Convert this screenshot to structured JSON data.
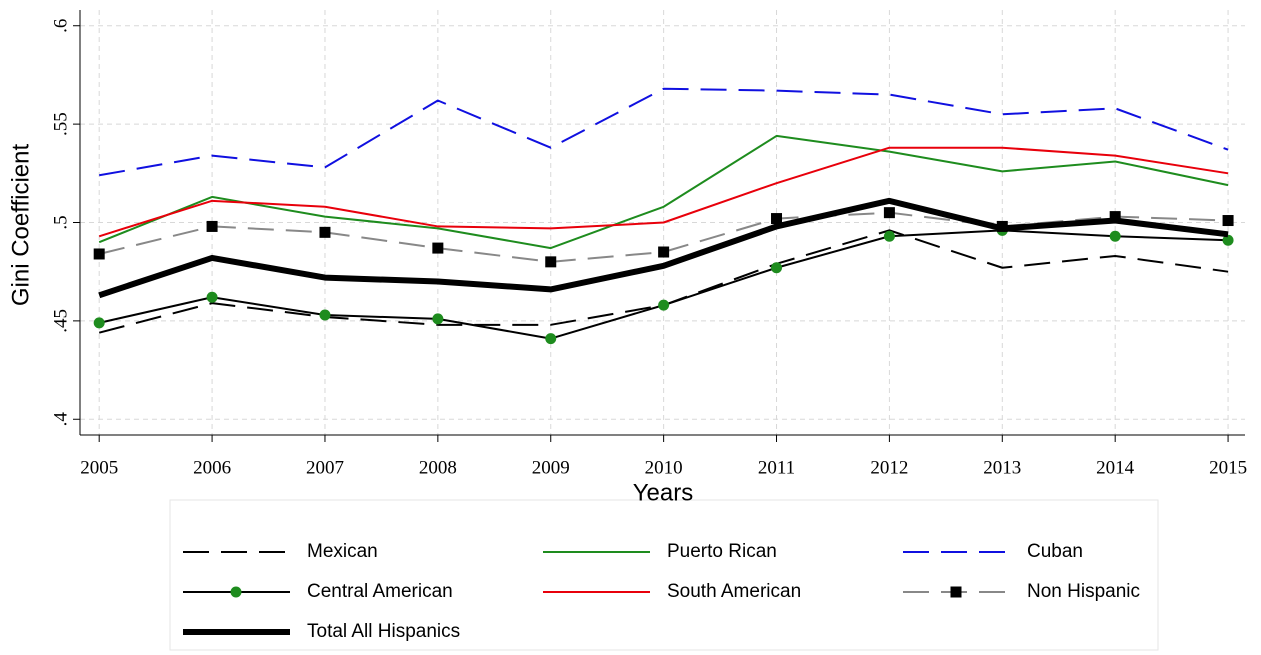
{
  "chart_data": {
    "type": "line",
    "x": [
      2005,
      2006,
      2007,
      2008,
      2009,
      2010,
      2011,
      2012,
      2013,
      2014,
      2015
    ],
    "xlim": [
      2004.83,
      2015.15
    ],
    "xticks": [
      2005,
      2006,
      2007,
      2008,
      2009,
      2010,
      2011,
      2012,
      2013,
      2014,
      2015
    ],
    "ylim": [
      0.392,
      0.608
    ],
    "yticks": [
      {
        "value": 0.4,
        "label": ".4"
      },
      {
        "value": 0.45,
        "label": ".45"
      },
      {
        "value": 0.5,
        "label": ".5"
      },
      {
        "value": 0.55,
        "label": ".55"
      },
      {
        "value": 0.6,
        "label": ".6"
      }
    ],
    "xlabel": "Years",
    "ylabel": "Gini Coefficient",
    "grid": true,
    "legend": "bottom",
    "series": [
      {
        "name": "Mexican",
        "color": "#000000",
        "line_style": "dashed",
        "values": [
          0.444,
          0.459,
          0.452,
          0.448,
          0.448,
          0.458,
          0.479,
          0.496,
          0.477,
          0.483,
          0.475
        ]
      },
      {
        "name": "Puerto Rican",
        "color": "#1e8c1e",
        "line_style": "solid",
        "values": [
          0.49,
          0.513,
          0.503,
          0.497,
          0.487,
          0.508,
          0.544,
          0.536,
          0.526,
          0.531,
          0.519
        ]
      },
      {
        "name": "Cuban",
        "color": "#1010e0",
        "line_style": "dashed",
        "values": [
          0.524,
          0.534,
          0.528,
          0.562,
          0.538,
          0.568,
          0.567,
          0.565,
          0.555,
          0.558,
          0.537
        ]
      },
      {
        "name": "Central American",
        "color": "#000000",
        "line_style": "solid",
        "marker": "circle",
        "marker_color": "#1e8c1e",
        "values": [
          0.449,
          0.462,
          0.453,
          0.451,
          0.441,
          0.458,
          0.477,
          0.493,
          0.496,
          0.493,
          0.491
        ]
      },
      {
        "name": "South American",
        "color": "#e8000b",
        "line_style": "solid",
        "values": [
          0.493,
          0.511,
          0.508,
          0.498,
          0.497,
          0.5,
          0.52,
          0.538,
          0.538,
          0.534,
          0.525
        ]
      },
      {
        "name": "Non Hispanic",
        "color": "#888888",
        "line_style": "dashed",
        "marker": "square",
        "marker_color": "#000000",
        "values": [
          0.484,
          0.498,
          0.495,
          0.487,
          0.48,
          0.485,
          0.502,
          0.505,
          0.498,
          0.503,
          0.501
        ]
      },
      {
        "name": "Total All Hispanics",
        "color": "#000000",
        "line_style": "thick",
        "values": [
          0.463,
          0.482,
          0.472,
          0.47,
          0.466,
          0.478,
          0.498,
          0.511,
          0.497,
          0.501,
          0.494
        ]
      }
    ]
  }
}
